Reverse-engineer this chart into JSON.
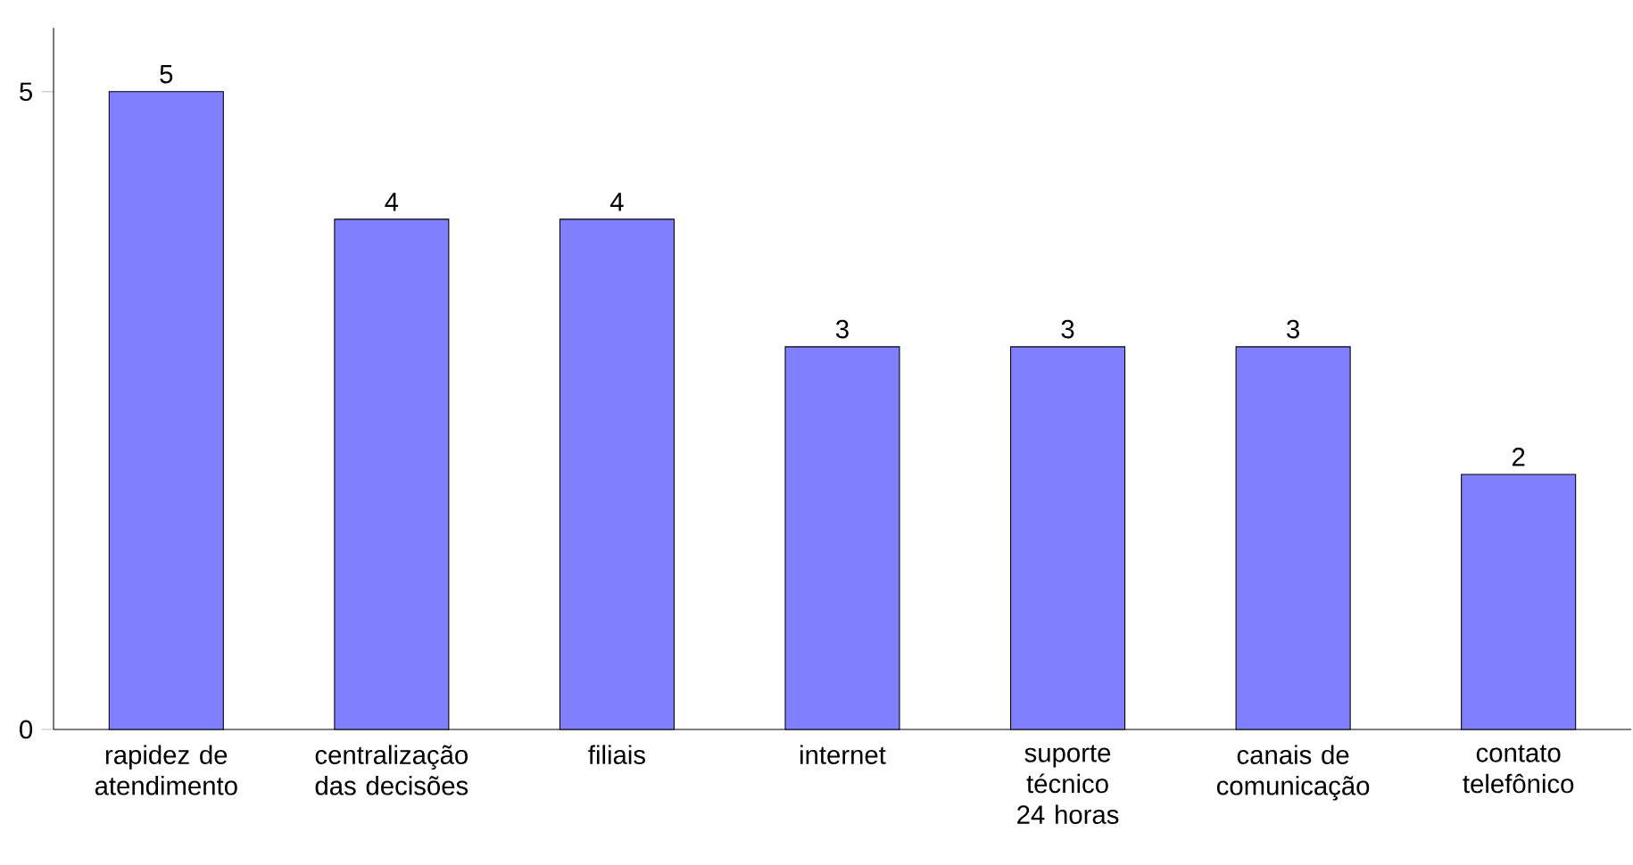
{
  "chart_data": {
    "type": "bar",
    "categories": [
      "rapidez de atendimento",
      "centralização das decisões",
      "filiais",
      "internet",
      "suporte técnico 24 horas",
      "canais de comunicação",
      "contato telefônico"
    ],
    "values": [
      5,
      4,
      4,
      3,
      3,
      3,
      2
    ],
    "color": "#8080ff",
    "ylim": [
      0,
      5.5
    ],
    "yticks": [
      0,
      5
    ],
    "data_labels": true
  }
}
